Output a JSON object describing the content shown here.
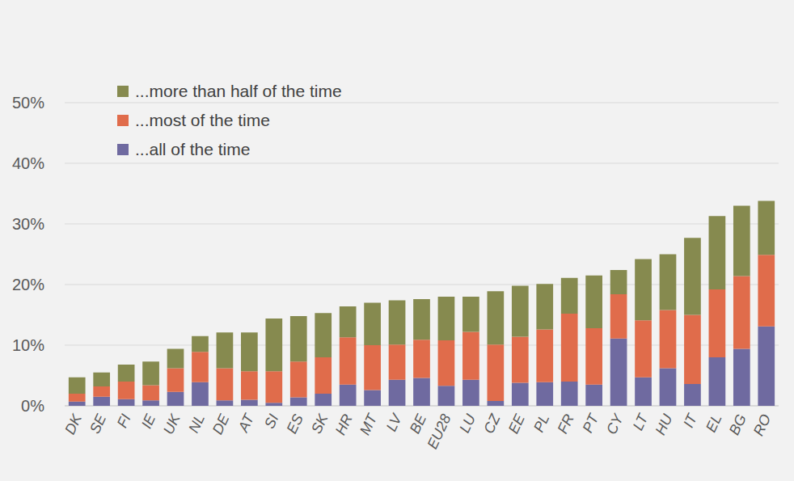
{
  "chart_data": {
    "type": "bar",
    "stacked": true,
    "grid": true,
    "legend": "top-left",
    "categories": [
      "DK",
      "SE",
      "FI",
      "IE",
      "UK",
      "NL",
      "DE",
      "AT",
      "SI",
      "ES",
      "SK",
      "HR",
      "MT",
      "LV",
      "BE",
      "EU28",
      "LU",
      "CZ",
      "EE",
      "PL",
      "FR",
      "PT",
      "CY",
      "LT",
      "HU",
      "IT",
      "EL",
      "BG",
      "RO"
    ],
    "series": [
      {
        "name": "...all of the time",
        "color": "#6f6aa0",
        "values": [
          0.7,
          1.5,
          1.1,
          0.9,
          2.3,
          3.9,
          0.9,
          1.0,
          0.5,
          1.4,
          2.0,
          3.5,
          2.6,
          4.3,
          4.6,
          3.3,
          4.3,
          0.8,
          3.8,
          3.9,
          4.0,
          3.5,
          11.1,
          4.7,
          6.2,
          3.6,
          8.0,
          9.4,
          13.1
        ]
      },
      {
        "name": "...most of the time",
        "color": "#e06c4b",
        "values": [
          1.3,
          1.7,
          2.9,
          2.5,
          3.9,
          5.0,
          5.3,
          4.7,
          5.2,
          5.9,
          6.0,
          7.8,
          7.4,
          5.8,
          6.3,
          7.5,
          7.9,
          9.3,
          7.6,
          8.7,
          11.2,
          9.3,
          7.3,
          9.4,
          9.6,
          11.4,
          11.2,
          12.0,
          11.8
        ]
      },
      {
        "name": "...more than half of the time",
        "color": "#868a4f",
        "values": [
          2.7,
          2.3,
          2.8,
          3.9,
          3.2,
          2.6,
          5.9,
          6.4,
          8.7,
          7.5,
          7.3,
          5.1,
          7.0,
          7.3,
          6.7,
          7.2,
          5.8,
          8.8,
          8.4,
          7.5,
          5.9,
          8.7,
          4.0,
          10.1,
          9.2,
          12.7,
          12.1,
          11.6,
          8.9
        ]
      }
    ],
    "ylim": [
      0,
      50
    ],
    "yticks": [
      {
        "value": 0,
        "label": "0%"
      },
      {
        "value": 10,
        "label": "10%"
      },
      {
        "value": 20,
        "label": "20%"
      },
      {
        "value": 30,
        "label": "30%"
      },
      {
        "value": 40,
        "label": "40%"
      },
      {
        "value": 50,
        "label": "50%"
      }
    ]
  }
}
